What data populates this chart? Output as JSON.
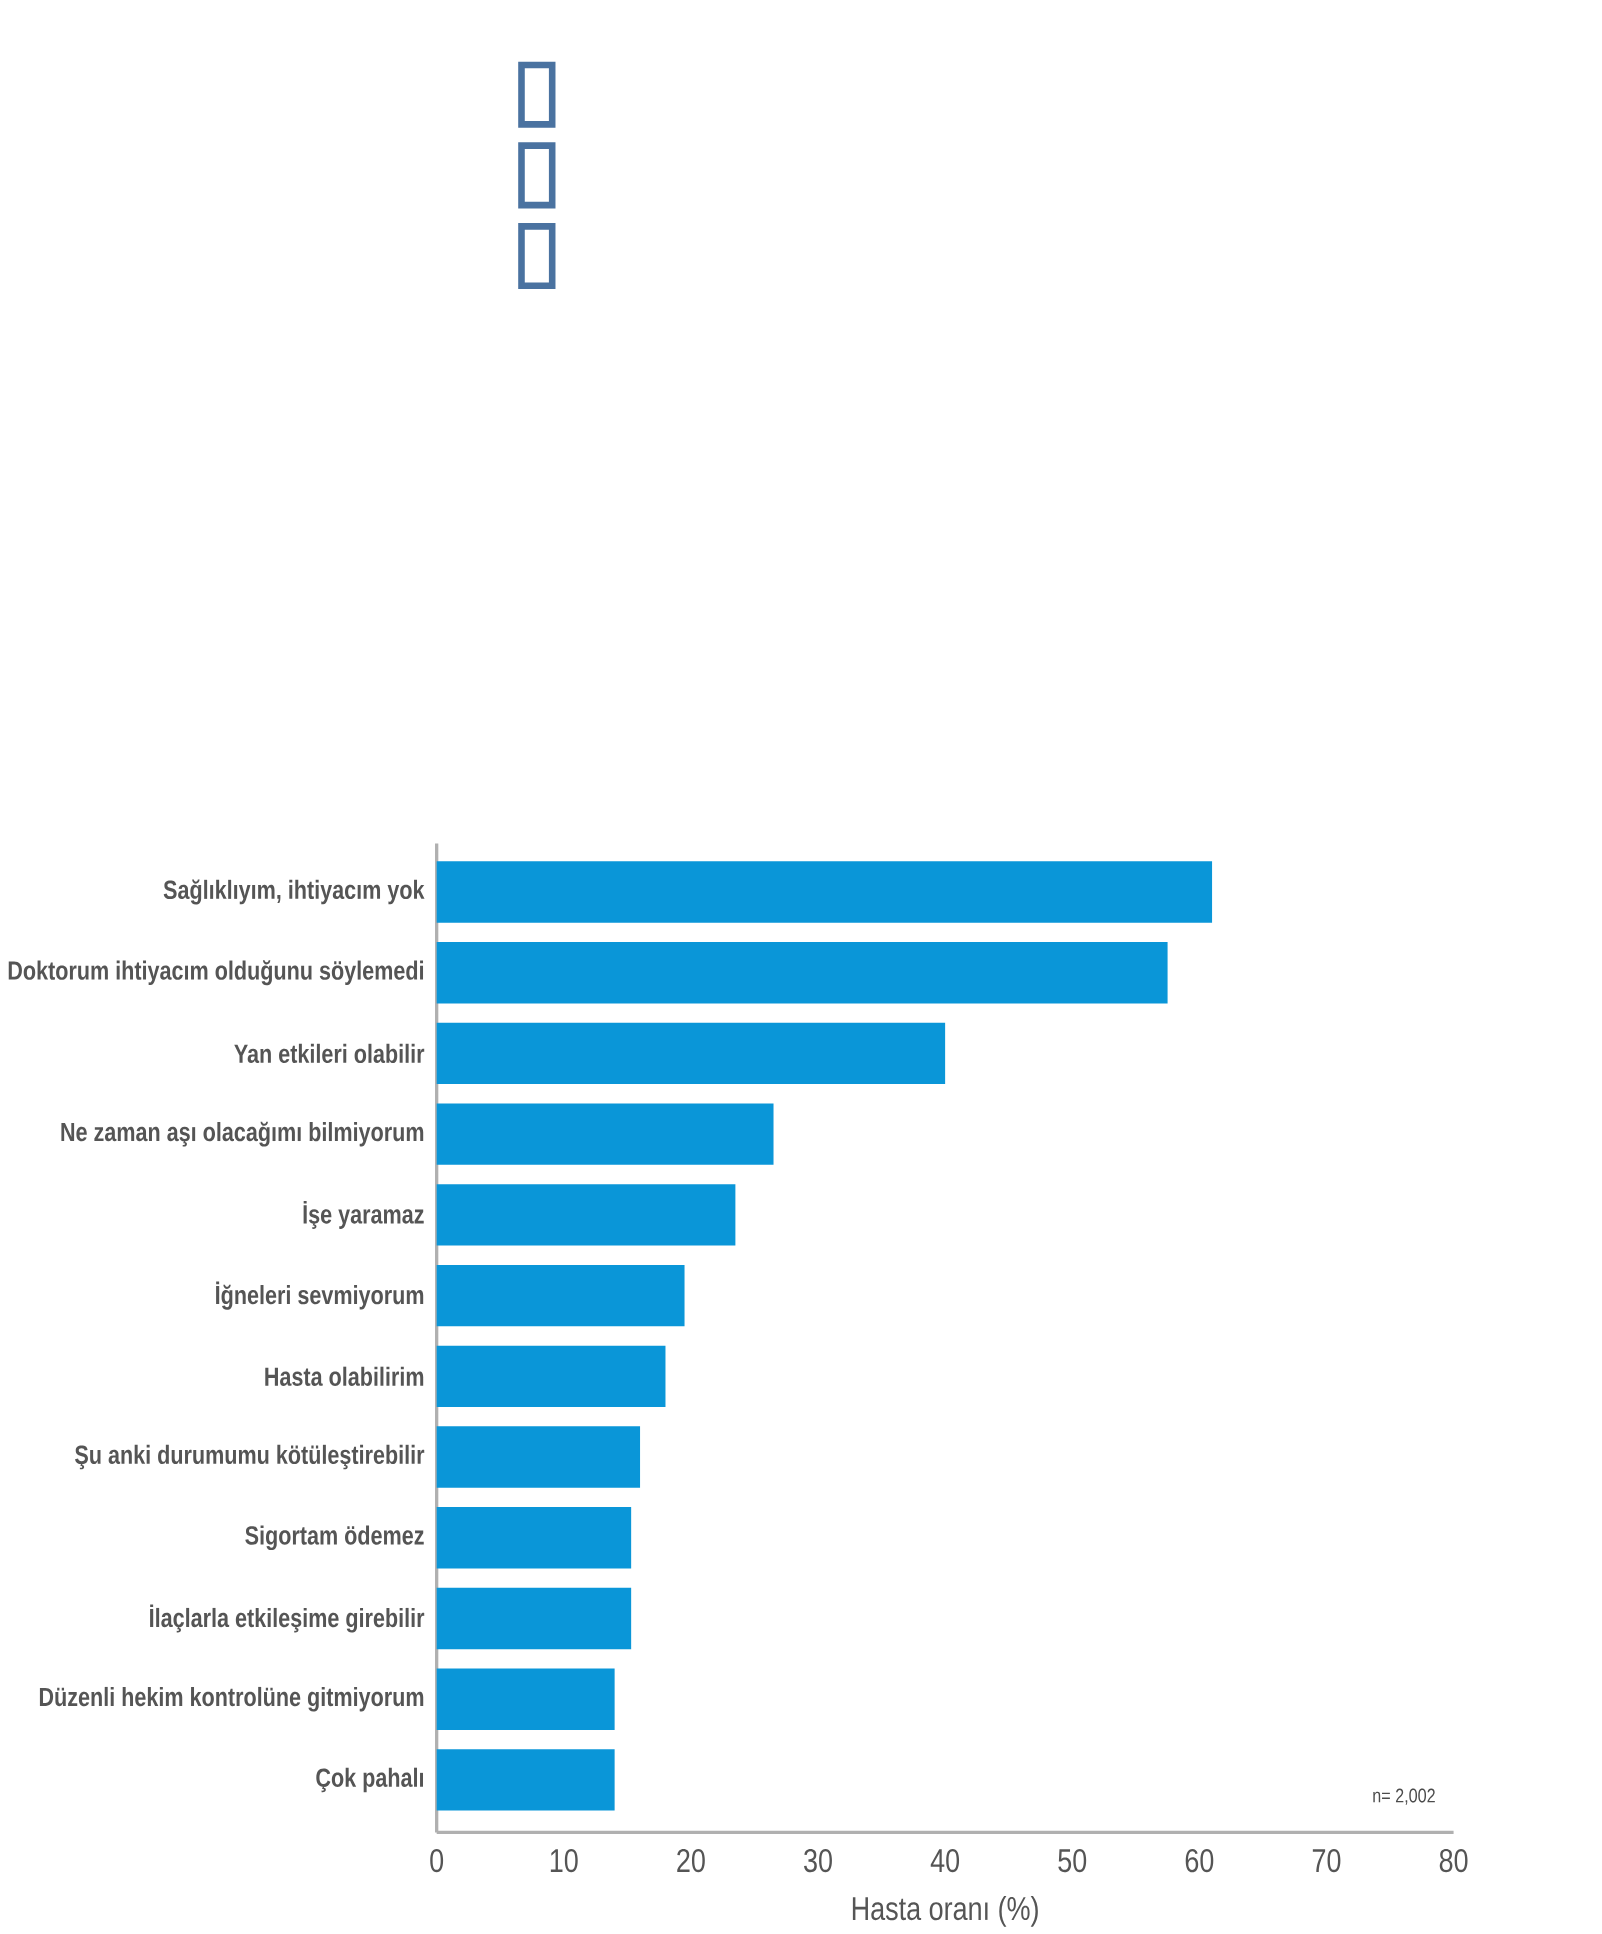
{
  "chart_data": {
    "type": "bar",
    "orientation": "horizontal",
    "xlabel": "Hasta oranı (%)",
    "categories": [
      "Sağlıklıyım, ihtiyacım yok",
      "Doktorum ihtiyacım olduğunu söylemedi",
      "Yan etkileri olabilir",
      "Ne zaman aşı olacağımı bilmiyorum",
      "İşe yaramaz",
      "İğneleri sevmiyorum",
      "Hasta olabilirim",
      "Şu anki durumumu kötüleştirebilir",
      "Sigortam ödemez",
      "İlaçlarla etkileşime girebilir",
      "Düzenli hekim kontrolüne gitmiyorum",
      "Çok pahalı"
    ],
    "values": [
      61,
      57.5,
      40,
      26.5,
      23.5,
      19.5,
      18,
      16,
      15.3,
      15.3,
      14,
      14
    ],
    "color": "#0a96d8",
    "xlim": [
      0,
      80
    ],
    "xticks": [
      0,
      10,
      20,
      30,
      40,
      50,
      60,
      70,
      80
    ],
    "grid": false,
    "annotations": [
      "n= 2,002"
    ]
  }
}
